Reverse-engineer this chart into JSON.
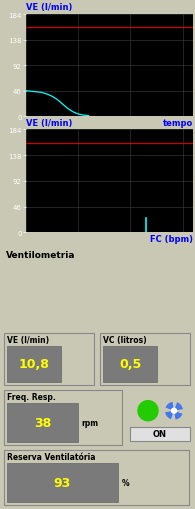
{
  "bg_color": "#c8c8b4",
  "chart_bg": "#000000",
  "grid_color": "#404040",
  "red_line_y": 160,
  "yticks": [
    0,
    46,
    92,
    138,
    184
  ],
  "ylim": [
    0,
    184
  ],
  "chart1_label": "VE (l/min)",
  "chart2_label": "VE (l/min)",
  "xlabel1": "tempo",
  "xlabel2": "FC (bpm)",
  "cyan_line1_x": [
    0,
    0.5,
    1.0,
    1.5,
    2.0,
    2.5,
    3.0,
    3.5,
    4.0,
    4.5,
    5.0,
    5.5,
    6.0
  ],
  "cyan_line1_y": [
    46,
    45,
    44,
    43,
    40,
    36,
    30,
    22,
    14,
    8,
    4,
    2,
    1
  ],
  "cyan_line2_x": [
    11.5
  ],
  "cyan_line2_y_bot": 0,
  "cyan_line2_y_top": 25,
  "xlim": [
    0,
    16
  ],
  "section_title": "Ventilometria",
  "ve_label": "VE (l/min)",
  "ve_value": "10,8",
  "vc_label": "VC (litros)",
  "vc_value": "0,5",
  "freq_label": "Freq. Resp.",
  "freq_value": "38",
  "freq_unit": "rpm",
  "reserva_label": "Reserva Ventilatória",
  "reserva_value": "93",
  "reserva_unit": "%",
  "on_label": "ON",
  "value_bg": "#7a7a7a",
  "value_fg": "#ffff00",
  "box_bg": "#c8c8b4",
  "box_border": "#a0a0a0",
  "green_circle_color": "#22cc00",
  "fan_color": "#4477ee",
  "panel_border": "#888888",
  "figw": 1.95,
  "figh": 5.1,
  "dpi": 100
}
